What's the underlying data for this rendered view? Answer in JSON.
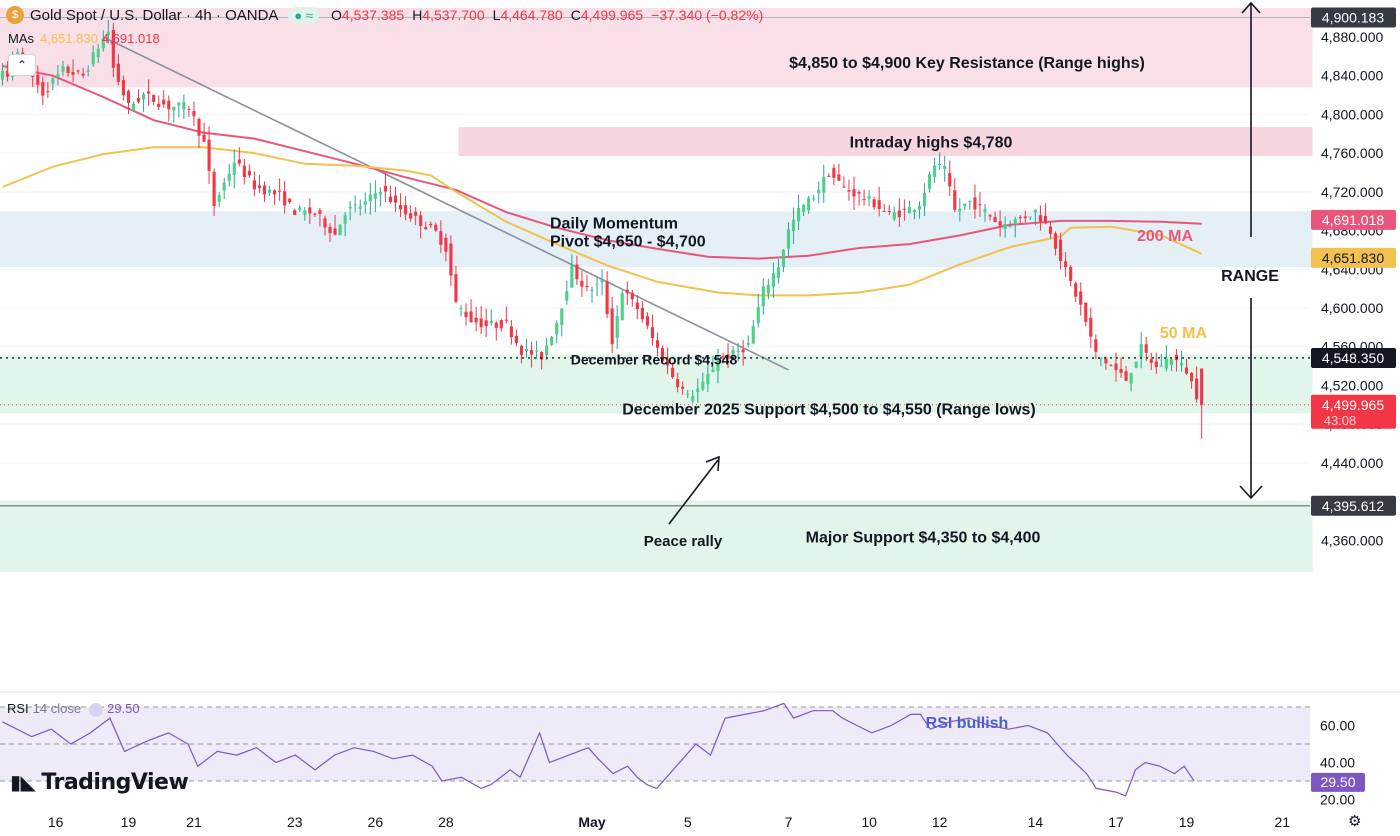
{
  "header": {
    "title": "Gold Spot / U.S. Dollar · 4h · OANDA",
    "ohlc": [
      {
        "k": "O",
        "v": "4,537.385"
      },
      {
        "k": "H",
        "v": "4,537.700"
      },
      {
        "k": "L",
        "v": "4,464.780"
      },
      {
        "k": "C",
        "v": "4,499.965"
      }
    ],
    "change": "−37.340 (−0.82%)",
    "mas_label": "MAs",
    "ma50_value": "4,651.830",
    "ma200_value": "4,691.018"
  },
  "rsi": {
    "label": "RSI",
    "params": "14 close",
    "value": "29.50"
  },
  "brand": "TradingView",
  "colors": {
    "up": "#26a69a",
    "up_body": "#4cd08a",
    "down": "#f23645",
    "ma50": "#f2c14e",
    "ma200": "#e8577a",
    "rsi": "#7e57c2",
    "resistance_zone": "#f9dfe7",
    "support_zone": "#e2f5ea",
    "pivot_zone": "#e4eff6"
  },
  "chart_data": {
    "type": "candlestick",
    "price_scale": {
      "ylim": [
        4320,
        4910
      ],
      "ticks": [
        "4,880.000",
        "4,840.000",
        "4,800.000",
        "4,760.000",
        "4,720.000",
        "4,680.000",
        "4,640.000",
        "4,600.000",
        "4,560.000",
        "4,520.000",
        "4,480.000",
        "4,440.000",
        "4,400.000",
        "4,360.000"
      ],
      "tick_values": [
        4880,
        4840,
        4800,
        4760,
        4720,
        4680,
        4640,
        4600,
        4560,
        4520,
        4480,
        4440,
        4400,
        4360
      ]
    },
    "x_axis": {
      "labels": [
        "16",
        "19",
        "21",
        "23",
        "26",
        "28",
        "May",
        "5",
        "7",
        "10",
        "12",
        "14",
        "17",
        "19",
        "21"
      ],
      "bar_index": [
        3,
        25,
        38,
        58,
        74,
        88,
        117,
        136,
        156,
        172,
        186,
        205,
        221,
        235,
        254
      ]
    },
    "price_labels": [
      {
        "text": "4,900.183",
        "value": 4900.183,
        "bg": "#363a45",
        "fg": "#ffffff"
      },
      {
        "text": "4,691.018",
        "value": 4691.018,
        "bg": "#e8577a",
        "fg": "#ffffff"
      },
      {
        "text": "4,651.830",
        "value": 4651.83,
        "bg": "#f2c14e",
        "fg": "#131722"
      },
      {
        "text": "4,548.350",
        "value": 4548.35,
        "bg": "#131722",
        "fg": "#ffffff"
      },
      {
        "text": "4,499.965",
        "sub": "43:08",
        "value": 4499.965,
        "bg": "#f23645",
        "fg": "#ffffff"
      },
      {
        "text": "4,395.612",
        "value": 4395.612,
        "bg": "#363a45",
        "fg": "#ffffff"
      }
    ],
    "zones": [
      {
        "label": "$4,850 to $4,900 Key Resistance (Range highs)",
        "from": 4828,
        "to": 4910,
        "x0": 0,
        "x1": 260,
        "fill": "#f9dfe7"
      },
      {
        "label": "Intraday highs $4,780",
        "from": 4757,
        "to": 4787,
        "x0": 91,
        "x1": 260,
        "fill": "#f7d6e0"
      },
      {
        "label": "Daily Momentum Pivot $4,650 - $4,700",
        "from": 4642,
        "to": 4700,
        "x0": 0,
        "x1": 260,
        "fill": "#e4eff6"
      },
      {
        "label": "December 2025 Support $4,500 to $4,550 (Range lows)",
        "from": 4491,
        "to": 4552,
        "x0": 0,
        "x1": 260,
        "fill": "#e2f5ea"
      },
      {
        "label": "Major Support $4,350 to $4,400",
        "from": 4327,
        "to": 4401,
        "x0": 0,
        "x1": 260,
        "fill": "#e2f5ea"
      }
    ],
    "annotations": {
      "december_record": "December Record $4,548",
      "peace_rally": "Peace rally",
      "ma200_label": "200 MA",
      "ma50_label": "50 MA",
      "range_label": "RANGE",
      "rsi_bullish": "RSI bullish"
    },
    "levels": {
      "december_record": 4548.35,
      "current_close": 4499.965,
      "major_line": 4395.612,
      "range_top": 4900.183
    },
    "trendline": {
      "from": {
        "bar": 20,
        "price": 4880
      },
      "to": {
        "bar": 156,
        "price": 4536
      }
    },
    "ma50": [
      [
        0,
        4725
      ],
      [
        10,
        4746
      ],
      [
        20,
        4759
      ],
      [
        30,
        4766
      ],
      [
        40,
        4766
      ],
      [
        50,
        4760
      ],
      [
        60,
        4749
      ],
      [
        70,
        4747
      ],
      [
        80,
        4742
      ],
      [
        85,
        4737
      ],
      [
        90,
        4720
      ],
      [
        100,
        4689
      ],
      [
        110,
        4666
      ],
      [
        120,
        4644
      ],
      [
        130,
        4627
      ],
      [
        142,
        4616
      ],
      [
        150,
        4613
      ],
      [
        160,
        4613
      ],
      [
        170,
        4616
      ],
      [
        180,
        4624
      ],
      [
        190,
        4645
      ],
      [
        200,
        4663
      ],
      [
        210,
        4674
      ],
      [
        212,
        4683
      ],
      [
        220,
        4684
      ],
      [
        230,
        4675
      ],
      [
        238,
        4656
      ]
    ],
    "ma200": [
      [
        0,
        4850
      ],
      [
        10,
        4840
      ],
      [
        20,
        4818
      ],
      [
        30,
        4794
      ],
      [
        40,
        4781
      ],
      [
        50,
        4775
      ],
      [
        60,
        4762
      ],
      [
        70,
        4749
      ],
      [
        80,
        4735
      ],
      [
        90,
        4722
      ],
      [
        100,
        4699
      ],
      [
        110,
        4683
      ],
      [
        120,
        4670
      ],
      [
        130,
        4661
      ],
      [
        140,
        4653
      ],
      [
        150,
        4651
      ],
      [
        160,
        4654
      ],
      [
        170,
        4662
      ],
      [
        180,
        4666
      ],
      [
        190,
        4675
      ],
      [
        200,
        4686
      ],
      [
        210,
        4690
      ],
      [
        220,
        4690
      ],
      [
        230,
        4689
      ],
      [
        238,
        4687
      ]
    ],
    "candles_sample": [
      [
        4836,
        4853,
        4830,
        4845
      ],
      [
        4845,
        4855,
        4834,
        4839
      ],
      [
        4839,
        4865,
        4835,
        4860
      ],
      [
        4860,
        4868,
        4853,
        4864
      ],
      [
        4864,
        4869,
        4850,
        4855
      ]
    ],
    "rsi_scale": {
      "ylim": [
        17,
        73
      ],
      "ticks": [
        "60.00",
        "40.00",
        "20.00"
      ],
      "tick_values": [
        60,
        40,
        20
      ],
      "bands": [
        70,
        50,
        30
      ]
    }
  }
}
